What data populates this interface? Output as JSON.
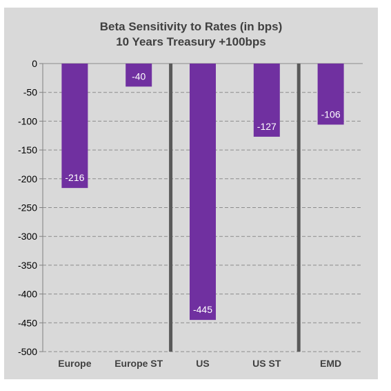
{
  "chart_data": {
    "type": "bar",
    "title": "Beta Sensitivity to Rates (in bps)",
    "subtitle": "10 Years Treasury +100bps",
    "categories": [
      "Europe",
      "Europe ST",
      "US",
      "US ST",
      "EMD"
    ],
    "values": [
      -216,
      -40,
      -445,
      -127,
      -106
    ],
    "data_labels": [
      "-216",
      "-40",
      "-445",
      "-127",
      "-106"
    ],
    "yticks": [
      "0",
      "-50",
      "-100",
      "-150",
      "-200",
      "-250",
      "-300",
      "-350",
      "-400",
      "-450",
      "-500"
    ],
    "ylim": [
      -500,
      0
    ],
    "grid": "dashed horizontal",
    "separators_after": [
      "Europe ST",
      "US ST"
    ],
    "bar_color": "#7030a0",
    "background_color": "#d9d9d9"
  }
}
